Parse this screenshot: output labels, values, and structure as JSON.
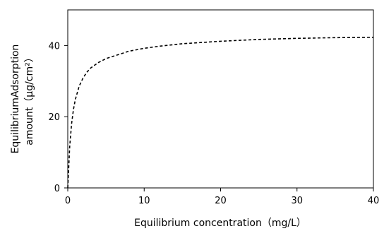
{
  "chart_data": {
    "type": "line",
    "xlabel": "Equilibrium concentration（mg/L）",
    "ylabel_lines": [
      "EquilibriumAdsorption",
      "amount（μg/cm²）"
    ],
    "xlim": [
      0,
      40
    ],
    "ylim": [
      0,
      50
    ],
    "x_ticks": [
      0,
      10,
      20,
      30,
      40
    ],
    "y_ticks": [
      0,
      20,
      40
    ],
    "x_tick_labels": [
      "0",
      "10",
      "20",
      "30",
      "40"
    ],
    "y_tick_labels": [
      "0",
      "20",
      "40"
    ],
    "grid": false,
    "series": [
      {
        "line_style": "dashed",
        "color": "#000000",
        "x": [
          0,
          0.25,
          0.5,
          0.75,
          1,
          1.5,
          2,
          2.5,
          3,
          4,
          5,
          6,
          8,
          10,
          12,
          15,
          20,
          25,
          30,
          35,
          40
        ],
        "y": [
          0,
          11.5,
          18.0,
          22.1,
          24.9,
          28.6,
          30.9,
          32.5,
          33.7,
          35.2,
          36.3,
          37.0,
          38.4,
          39.2,
          39.8,
          40.5,
          41.2,
          41.7,
          42.0,
          42.2,
          42.3
        ]
      }
    ]
  }
}
